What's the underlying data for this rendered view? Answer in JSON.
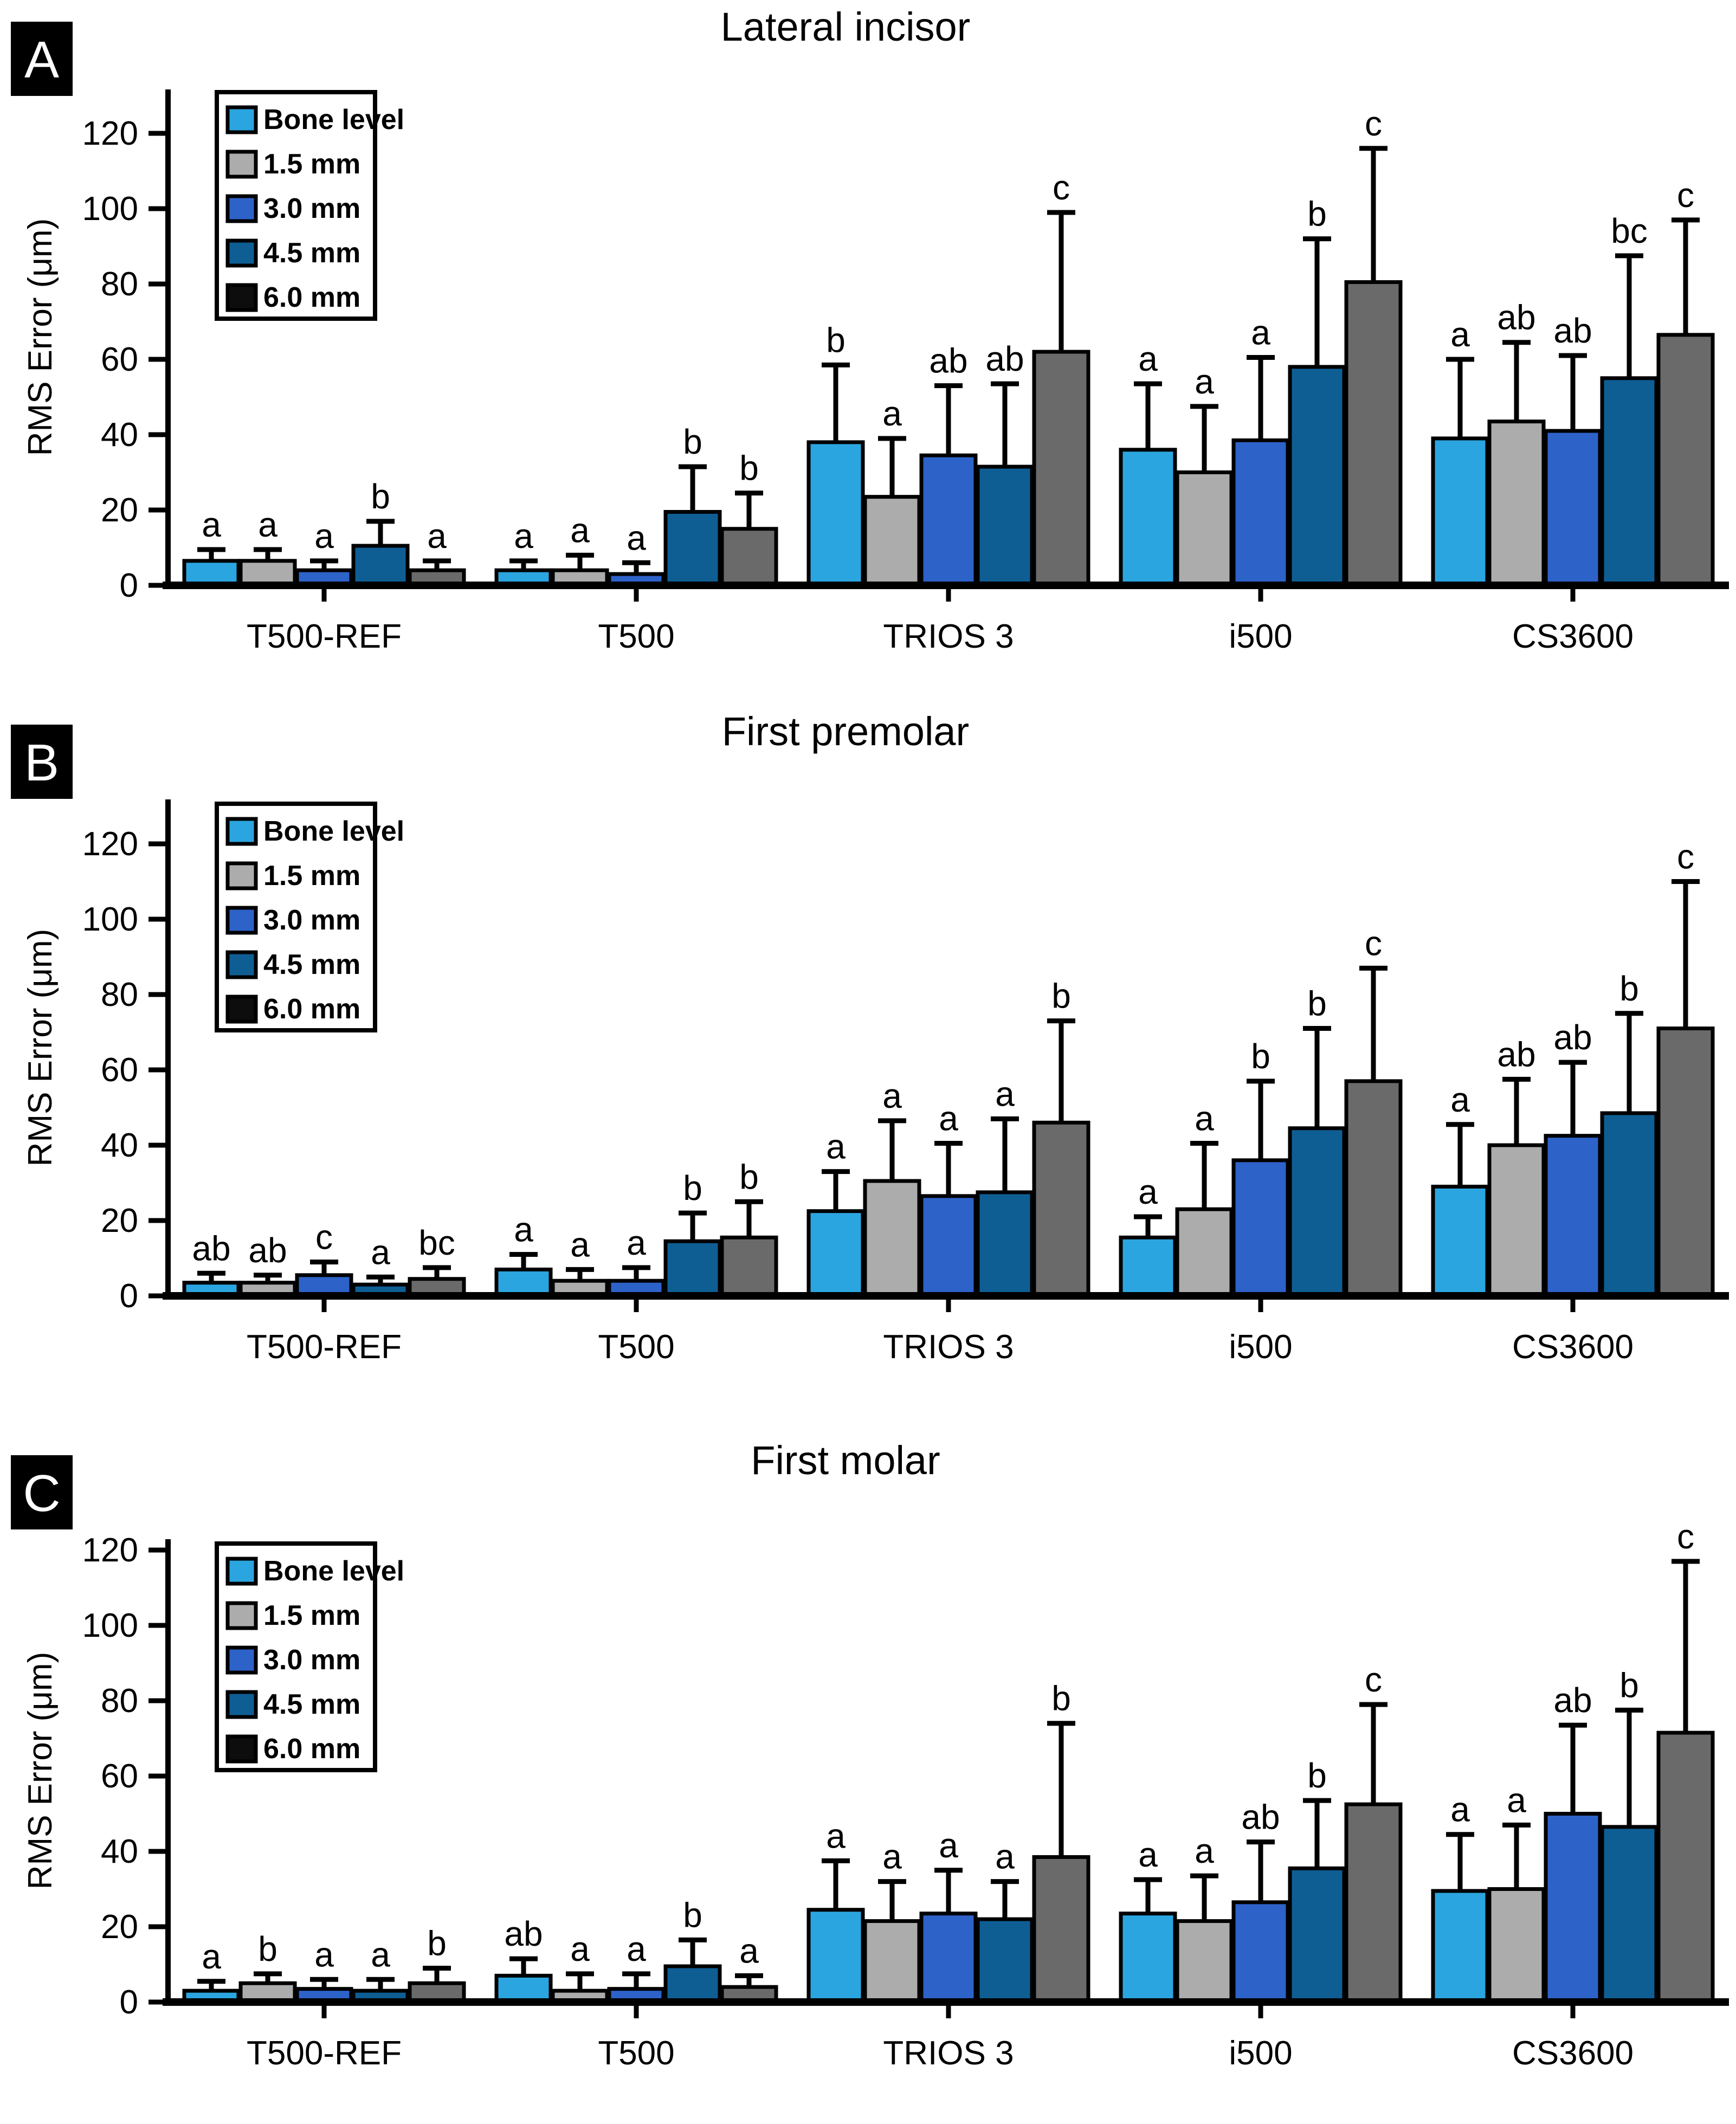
{
  "figure": {
    "kind": "three-panel grouped bar figure with error bars and significance letters",
    "background": "#FFFFFF"
  },
  "colors": {
    "bone_level": "#2BA5DF",
    "mm_1_5": "#ACACAC",
    "mm_3_0": "#2D62C8",
    "mm_4_5": "#0E5E94",
    "mm_6_0_bar": "#6A6A6A",
    "mm_6_0_legend": "#0D0D0D",
    "bar_border": "#000000",
    "axis": "#000000",
    "panel_tag_bg": "#000000",
    "panel_tag_text": "#FFFFFF"
  },
  "chart_data": [
    {
      "type": "bar",
      "panel_label": "A",
      "title": "Lateral incisor",
      "ylabel": "RMS Error (μm)",
      "ylim": [
        0,
        135
      ],
      "yticks": [
        0,
        20,
        40,
        60,
        80,
        100,
        120
      ],
      "grid": false,
      "legend_position": "top-left-inside",
      "error_bars": "+1SD upper whiskers with caps",
      "categories": [
        "T500-REF",
        "T500",
        "TRIOS 3",
        "i500",
        "CS3600"
      ],
      "series": [
        {
          "name": "Bone level",
          "color_key": "bone_level",
          "values": [
            6.5,
            4,
            38,
            36,
            39
          ],
          "sd": [
            3,
            2.5,
            20.5,
            17.5,
            21
          ],
          "letters": [
            "a",
            "a",
            "b",
            "a",
            "a"
          ]
        },
        {
          "name": "1.5 mm",
          "color_key": "mm_1_5",
          "values": [
            6.5,
            4,
            23.5,
            30,
            43.5
          ],
          "sd": [
            3,
            4,
            15.5,
            17.5,
            21
          ],
          "letters": [
            "a",
            "a",
            "a",
            "a",
            "ab"
          ]
        },
        {
          "name": "3.0 mm",
          "color_key": "mm_3_0",
          "values": [
            4,
            3,
            34.5,
            38.5,
            41
          ],
          "sd": [
            2.5,
            3,
            18.5,
            22,
            20
          ],
          "letters": [
            "a",
            "a",
            "ab",
            "a",
            "ab"
          ]
        },
        {
          "name": "4.5 mm",
          "color_key": "mm_4_5",
          "values": [
            10.5,
            19.5,
            31.5,
            58,
            55
          ],
          "sd": [
            6.5,
            12,
            22,
            34,
            32.5
          ],
          "letters": [
            "b",
            "b",
            "ab",
            "b",
            "bc"
          ]
        },
        {
          "name": "6.0 mm",
          "color_key": "mm_6_0_bar",
          "values": [
            4,
            15,
            62,
            80.5,
            66.5
          ],
          "sd": [
            2.5,
            9.5,
            37,
            35.5,
            30.5
          ],
          "letters": [
            "a",
            "b",
            "c",
            "c",
            "c"
          ]
        }
      ]
    },
    {
      "type": "bar",
      "panel_label": "B",
      "title": "First premolar",
      "ylabel": "RMS Error (μm)",
      "ylim": [
        0,
        135
      ],
      "yticks": [
        0,
        20,
        40,
        60,
        80,
        100,
        120
      ],
      "grid": false,
      "legend_position": "top-left-inside",
      "error_bars": "+1SD upper whiskers with caps",
      "categories": [
        "T500-REF",
        "T500",
        "TRIOS 3",
        "i500",
        "CS3600"
      ],
      "series": [
        {
          "name": "Bone level",
          "color_key": "bone_level",
          "values": [
            3.5,
            7,
            22.5,
            15.5,
            29
          ],
          "sd": [
            2.5,
            4,
            10.5,
            5.5,
            16.5
          ],
          "letters": [
            "ab",
            "a",
            "a",
            "a",
            "a"
          ]
        },
        {
          "name": "1.5 mm",
          "color_key": "mm_1_5",
          "values": [
            3.5,
            4,
            30.5,
            23,
            40
          ],
          "sd": [
            2,
            3,
            16,
            17.5,
            17.5
          ],
          "letters": [
            "ab",
            "a",
            "a",
            "a",
            "ab"
          ]
        },
        {
          "name": "3.0 mm",
          "color_key": "mm_3_0",
          "values": [
            5.5,
            4,
            26.5,
            36,
            42.5
          ],
          "sd": [
            3.5,
            3.5,
            14,
            21,
            19.5
          ],
          "letters": [
            "c",
            "a",
            "a",
            "b",
            "ab"
          ]
        },
        {
          "name": "4.5 mm",
          "color_key": "mm_4_5",
          "values": [
            3,
            14.5,
            27.5,
            44.5,
            48.5
          ],
          "sd": [
            2,
            7.5,
            19.5,
            26.5,
            26.5
          ],
          "letters": [
            "a",
            "b",
            "a",
            "b",
            "b"
          ]
        },
        {
          "name": "6.0 mm",
          "color_key": "mm_6_0_bar",
          "values": [
            4.5,
            15.5,
            46,
            57,
            71
          ],
          "sd": [
            3,
            9.5,
            27,
            30,
            39
          ],
          "letters": [
            "bc",
            "b",
            "b",
            "c",
            "c"
          ]
        }
      ]
    },
    {
      "type": "bar",
      "panel_label": "C",
      "title": "First molar",
      "ylabel": "RMS Error (μm)",
      "ylim": [
        0,
        135
      ],
      "yticks": [
        0,
        20,
        40,
        60,
        80,
        100,
        120
      ],
      "grid": false,
      "legend_position": "top-left-inside",
      "error_bars": "+1SD upper whiskers with caps",
      "categories": [
        "T500-REF",
        "T500",
        "TRIOS 3",
        "i500",
        "CS3600"
      ],
      "series": [
        {
          "name": "Bone level",
          "color_key": "bone_level",
          "values": [
            3,
            7,
            24.5,
            23.5,
            29.5
          ],
          "sd": [
            2.5,
            4.5,
            13,
            9,
            15
          ],
          "letters": [
            "a",
            "ab",
            "a",
            "a",
            "a"
          ]
        },
        {
          "name": "1.5 mm",
          "color_key": "mm_1_5",
          "values": [
            5,
            3,
            21.5,
            21.5,
            30
          ],
          "sd": [
            2.5,
            4.5,
            10.5,
            12,
            17
          ],
          "letters": [
            "b",
            "a",
            "a",
            "a",
            "a"
          ]
        },
        {
          "name": "3.0 mm",
          "color_key": "mm_3_0",
          "values": [
            3.5,
            3.5,
            23.5,
            26.5,
            50
          ],
          "sd": [
            2.5,
            4,
            11.5,
            16,
            23.5
          ],
          "letters": [
            "a",
            "a",
            "a",
            "ab",
            "ab"
          ]
        },
        {
          "name": "4.5 mm",
          "color_key": "mm_4_5",
          "values": [
            3,
            9.5,
            22,
            35.5,
            46.5
          ],
          "sd": [
            3,
            7,
            10,
            18,
            31
          ],
          "letters": [
            "a",
            "b",
            "a",
            "b",
            "b"
          ]
        },
        {
          "name": "6.0 mm",
          "color_key": "mm_6_0_bar",
          "values": [
            5,
            4,
            38.5,
            52.5,
            71.5
          ],
          "sd": [
            4,
            3,
            35.5,
            26.5,
            45.5
          ],
          "letters": [
            "b",
            "a",
            "b",
            "c",
            "c"
          ]
        }
      ]
    }
  ],
  "legend": {
    "entries": [
      "Bone level",
      "1.5 mm",
      "3.0 mm",
      "4.5 mm",
      "6.0 mm"
    ]
  }
}
